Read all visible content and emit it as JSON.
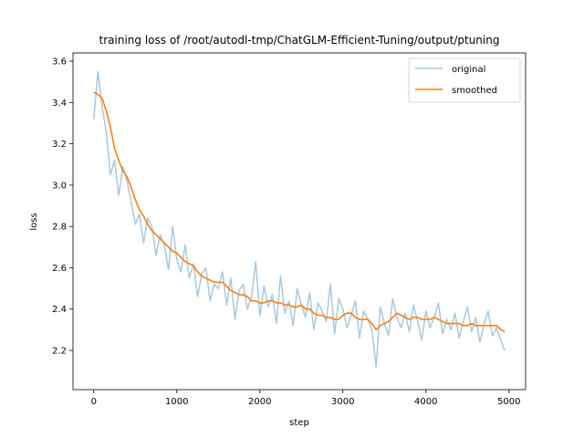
{
  "chart_data": {
    "type": "line",
    "title": "training loss of /root/autodl-tmp/ChatGLM-Efficient-Tuning/output/ptuning",
    "xlabel": "step",
    "ylabel": "loss",
    "xlim": [
      -250,
      5200
    ],
    "ylim": [
      2.01,
      3.64
    ],
    "x_ticks": [
      0,
      1000,
      2000,
      3000,
      4000,
      5000
    ],
    "x_tick_labels": [
      "0",
      "1000",
      "2000",
      "3000",
      "4000",
      "5000"
    ],
    "y_ticks": [
      2.2,
      2.4,
      2.6,
      2.8,
      3.0,
      3.2,
      3.4,
      3.6
    ],
    "y_tick_labels": [
      "2.2",
      "2.4",
      "2.6",
      "2.8",
      "3.0",
      "3.2",
      "3.4",
      "3.6"
    ],
    "grid": false,
    "legend_position": "upper-right",
    "series": [
      {
        "name": "original",
        "color": "#a6c9e2",
        "x": [
          0,
          50,
          100,
          150,
          200,
          250,
          300,
          350,
          400,
          450,
          500,
          550,
          600,
          650,
          700,
          750,
          800,
          850,
          900,
          950,
          1000,
          1050,
          1100,
          1150,
          1200,
          1250,
          1300,
          1350,
          1400,
          1450,
          1500,
          1550,
          1600,
          1650,
          1700,
          1750,
          1800,
          1850,
          1900,
          1950,
          2000,
          2050,
          2100,
          2150,
          2200,
          2250,
          2300,
          2350,
          2400,
          2450,
          2500,
          2550,
          2600,
          2650,
          2700,
          2750,
          2800,
          2850,
          2900,
          2950,
          3000,
          3050,
          3100,
          3150,
          3200,
          3250,
          3300,
          3350,
          3400,
          3450,
          3500,
          3550,
          3600,
          3650,
          3700,
          3750,
          3800,
          3850,
          3900,
          3950,
          4000,
          4050,
          4100,
          4150,
          4200,
          4250,
          4300,
          4350,
          4400,
          4450,
          4500,
          4550,
          4600,
          4650,
          4700,
          4750,
          4800,
          4850,
          4900,
          4950
        ],
        "y": [
          3.32,
          3.55,
          3.38,
          3.26,
          3.05,
          3.12,
          2.95,
          3.09,
          3.02,
          2.92,
          2.81,
          2.86,
          2.72,
          2.84,
          2.8,
          2.66,
          2.76,
          2.71,
          2.59,
          2.8,
          2.64,
          2.58,
          2.71,
          2.55,
          2.62,
          2.46,
          2.57,
          2.6,
          2.44,
          2.52,
          2.5,
          2.58,
          2.42,
          2.55,
          2.35,
          2.49,
          2.52,
          2.4,
          2.46,
          2.63,
          2.37,
          2.51,
          2.41,
          2.47,
          2.33,
          2.56,
          2.38,
          2.44,
          2.32,
          2.5,
          2.42,
          2.36,
          2.48,
          2.3,
          2.43,
          2.39,
          2.34,
          2.52,
          2.28,
          2.45,
          2.4,
          2.31,
          2.37,
          2.44,
          2.26,
          2.39,
          2.35,
          2.3,
          2.12,
          2.41,
          2.33,
          2.27,
          2.45,
          2.36,
          2.31,
          2.38,
          2.29,
          2.42,
          2.34,
          2.25,
          2.39,
          2.31,
          2.36,
          2.43,
          2.28,
          2.35,
          2.3,
          2.38,
          2.26,
          2.34,
          2.41,
          2.29,
          2.36,
          2.24,
          2.33,
          2.39,
          2.27,
          2.31,
          2.25,
          2.2
        ]
      },
      {
        "name": "smoothed",
        "color": "#ff7f0e",
        "x": [
          0,
          50,
          100,
          150,
          200,
          250,
          300,
          350,
          400,
          450,
          500,
          550,
          600,
          650,
          700,
          750,
          800,
          850,
          900,
          950,
          1000,
          1050,
          1100,
          1150,
          1200,
          1250,
          1300,
          1350,
          1400,
          1450,
          1500,
          1550,
          1600,
          1650,
          1700,
          1750,
          1800,
          1850,
          1900,
          1950,
          2000,
          2050,
          2100,
          2150,
          2200,
          2250,
          2300,
          2350,
          2400,
          2450,
          2500,
          2550,
          2600,
          2650,
          2700,
          2750,
          2800,
          2850,
          2900,
          2950,
          3000,
          3050,
          3100,
          3150,
          3200,
          3250,
          3300,
          3350,
          3400,
          3450,
          3500,
          3550,
          3600,
          3650,
          3700,
          3750,
          3800,
          3850,
          3900,
          3950,
          4000,
          4050,
          4100,
          4150,
          4200,
          4250,
          4300,
          4350,
          4400,
          4450,
          4500,
          4550,
          4600,
          4650,
          4700,
          4750,
          4800,
          4850,
          4900,
          4950
        ],
        "y": [
          3.45,
          3.44,
          3.42,
          3.36,
          3.28,
          3.18,
          3.12,
          3.07,
          3.04,
          2.99,
          2.93,
          2.88,
          2.85,
          2.81,
          2.78,
          2.76,
          2.74,
          2.72,
          2.7,
          2.68,
          2.67,
          2.65,
          2.63,
          2.62,
          2.61,
          2.58,
          2.56,
          2.55,
          2.54,
          2.53,
          2.53,
          2.53,
          2.51,
          2.49,
          2.48,
          2.47,
          2.47,
          2.46,
          2.44,
          2.44,
          2.43,
          2.43,
          2.44,
          2.44,
          2.43,
          2.43,
          2.42,
          2.42,
          2.41,
          2.41,
          2.42,
          2.4,
          2.4,
          2.38,
          2.37,
          2.37,
          2.36,
          2.36,
          2.35,
          2.35,
          2.37,
          2.38,
          2.38,
          2.36,
          2.35,
          2.35,
          2.35,
          2.33,
          2.3,
          2.32,
          2.33,
          2.34,
          2.36,
          2.38,
          2.37,
          2.36,
          2.35,
          2.36,
          2.36,
          2.35,
          2.35,
          2.35,
          2.36,
          2.35,
          2.34,
          2.33,
          2.33,
          2.33,
          2.33,
          2.32,
          2.32,
          2.33,
          2.32,
          2.32,
          2.32,
          2.32,
          2.32,
          2.32,
          2.3,
          2.29
        ]
      }
    ]
  }
}
